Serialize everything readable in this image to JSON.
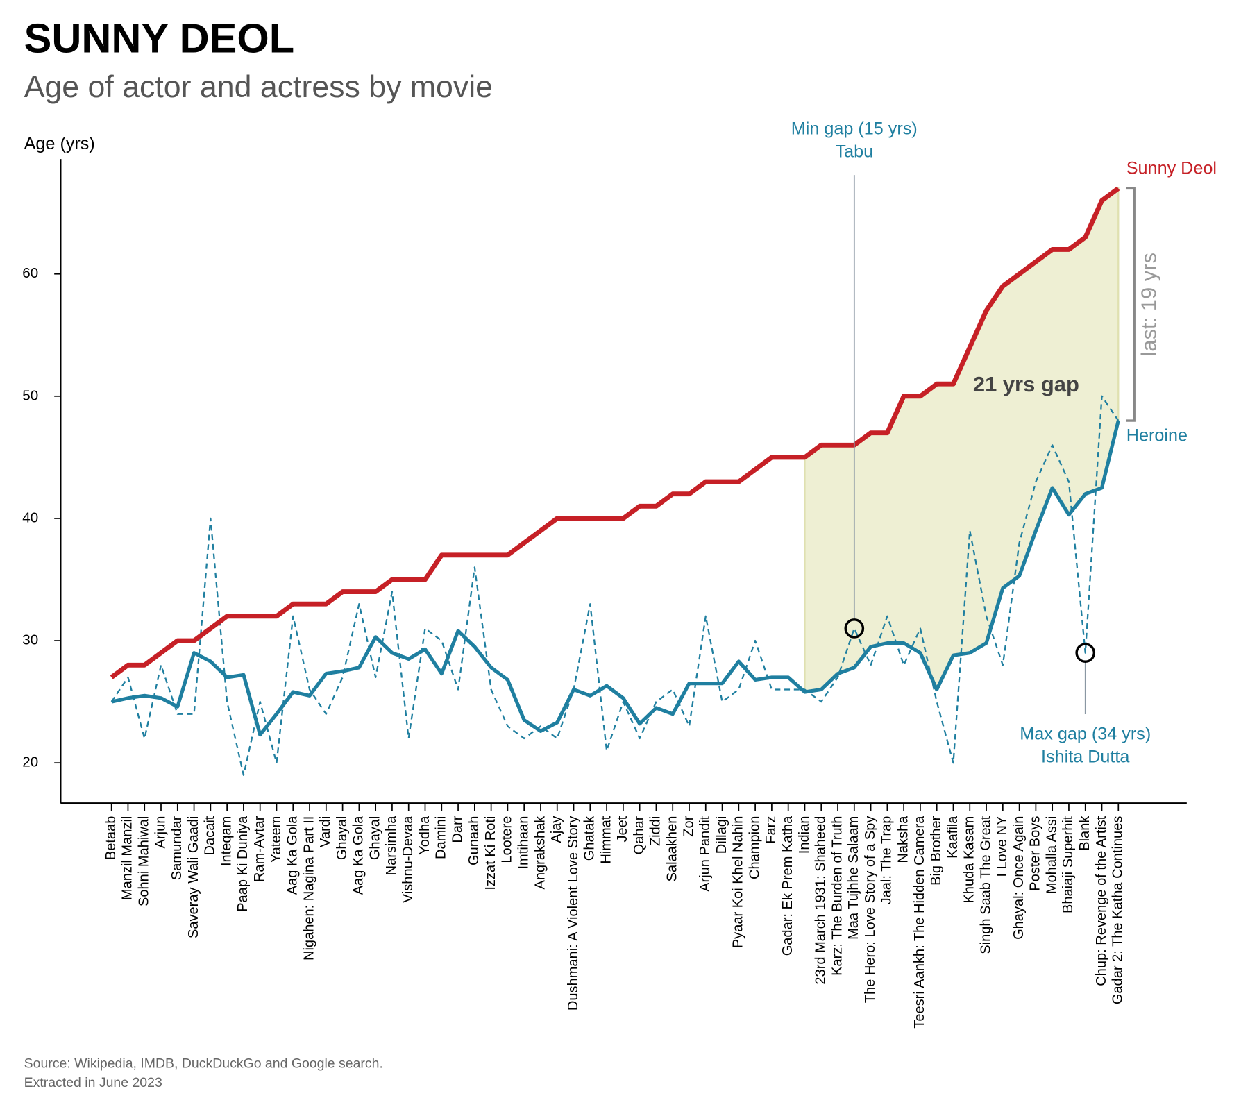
{
  "chart_data": {
    "type": "line",
    "title": "SUNNY DEOL",
    "subtitle": "Age of actor and actress by movie",
    "y_label": "Age (yrs)",
    "source": [
      "Source: Wikipedia, IMDB, DuckDuckGo and Google search.",
      "Extracted in June 2023"
    ],
    "categories": [
      "Betaab",
      "Manzil Manzil",
      "Sohni Mahiwal",
      "Arjun",
      "Samundar",
      "Saveray Wali Gaadi",
      "Dacait",
      "Inteqam",
      "Paap Ki Duniya",
      "Ram-Avtar",
      "Yateem",
      "Aag Ka Gola",
      "Nigahen: Nagina Part II",
      "Vardi",
      "Ghayal",
      "Aag Ka Gola",
      "Ghayal",
      "Narsimha",
      "Vishnu-Devaa",
      "Yodha",
      "Damini",
      "Darr",
      "Gunaah",
      "Izzat Ki Roti",
      "Lootere",
      "Imtihaan",
      "Angrakshak",
      "Ajay",
      "Dushmani: A Violent Love Story",
      "Ghatak",
      "Himmat",
      "Jeet",
      "Qahar",
      "Ziddi",
      "Salaakhen",
      "Zor",
      "Arjun Pandit",
      "Dillagi",
      "Pyaar Koi Khel Nahin",
      "Champion",
      "Farz",
      "Gadar: Ek Prem Katha",
      "Indian",
      "23rd March 1931: Shaheed",
      "Karz: The Burden of Truth",
      "Maa Tujhhe Salaam",
      "The Hero: Love Story of a Spy",
      "Jaal: The Trap",
      "Naksha",
      "Teesri Aankh: The Hidden Camera",
      "Big Brother",
      "Kaafila",
      "Khuda Kasam",
      "Singh Saab The Great",
      "I Love NY",
      "Ghayal: Once Again",
      "Poster Boys",
      "Mohalla Assi",
      "Bhaiaji Superhit",
      "Blank",
      "Chup: Revenge of the Artist",
      "Gadar 2: The Katha Continues"
    ],
    "series": [
      {
        "name": "Sunny Deol",
        "color": "#c62026",
        "style": "solid",
        "values": [
          27,
          28,
          28,
          29,
          30,
          30,
          31,
          32,
          32,
          32,
          32,
          33,
          33,
          33,
          34,
          34,
          34,
          35,
          35,
          35,
          37,
          37,
          37,
          37,
          37,
          38,
          39,
          40,
          40,
          40,
          40,
          40,
          41,
          41,
          42,
          42,
          43,
          43,
          43,
          44,
          45,
          45,
          45,
          46,
          46,
          46,
          47,
          47,
          50,
          50,
          51,
          51,
          54,
          57,
          59,
          60,
          61,
          62,
          62,
          63,
          66,
          67
        ]
      },
      {
        "color": "#1f7fa0",
        "style": "dashed",
        "values": [
          25,
          27,
          22,
          28,
          24,
          24,
          40,
          25,
          19,
          25,
          20,
          32,
          26,
          24,
          27,
          33,
          27,
          34,
          22,
          31,
          30,
          26,
          36,
          26,
          23,
          22,
          23,
          22,
          26,
          33,
          21,
          25,
          22,
          25,
          26,
          23,
          32,
          25,
          26,
          30,
          26,
          26,
          26,
          25,
          27,
          31,
          28,
          32,
          28,
          31,
          25,
          20,
          39,
          32,
          28,
          38,
          43,
          46,
          43,
          29,
          50,
          48
        ]
      },
      {
        "name": "Heroine",
        "color": "#1f7fa0",
        "style": "solid",
        "values": [
          25,
          25.3,
          25.5,
          25.3,
          24.6,
          29,
          28.3,
          27,
          27.2,
          22.3,
          24,
          25.8,
          25.5,
          27.3,
          27.5,
          27.8,
          30.3,
          29,
          28.5,
          29.3,
          27.3,
          30.8,
          29.5,
          27.8,
          26.8,
          23.5,
          22.6,
          23.3,
          26,
          25.5,
          26.3,
          25.3,
          23.2,
          24.5,
          24,
          26.5,
          26.5,
          26.5,
          28.3,
          26.8,
          27,
          27,
          25.8,
          26,
          27.3,
          27.8,
          29.5,
          29.8,
          29.8,
          29,
          26,
          28.8,
          29,
          29.8,
          34.3,
          35.3,
          39,
          42.5,
          40.3,
          42,
          42.5,
          48
        ]
      }
    ],
    "ylim": [
      16.7,
      69.4
    ],
    "yticks": [
      20,
      30,
      40,
      50,
      60
    ],
    "highlight": {
      "from": "Indian",
      "color": "#eeefd3",
      "label": "21 yrs gap"
    },
    "last_gap_label": "last: 19 yrs",
    "annotations": [
      {
        "category": "Maa Tujhhe Salaam",
        "text": [
          "Min gap (15 yrs)",
          "Tabu"
        ],
        "position": "above"
      },
      {
        "category": "Blank",
        "text": [
          "Max gap (34 yrs)",
          "Ishita Dutta"
        ],
        "position": "below"
      }
    ]
  }
}
